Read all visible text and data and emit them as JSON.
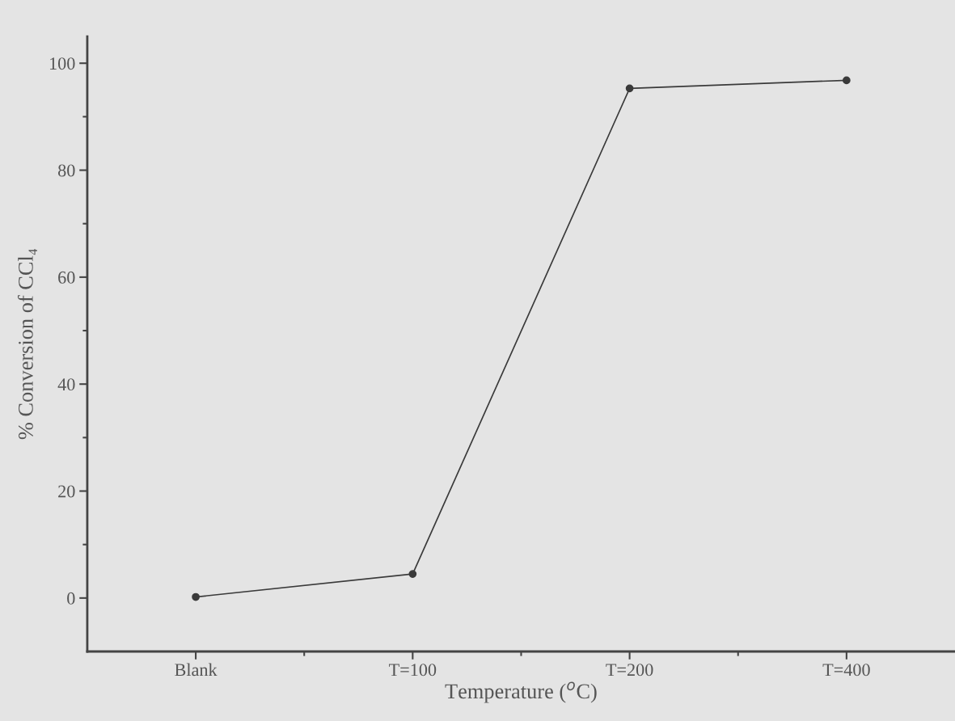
{
  "chart_data": {
    "type": "line",
    "xlabel": "Temperature ($^{o}$C)",
    "ylabel": "% Conversion of CCl₄",
    "categories": [
      "Blank",
      "T=100",
      "T=200",
      "T=400"
    ],
    "series": [
      {
        "color": "#3a3a3a",
        "values": [
          0.2,
          4.5,
          95.3,
          96.8
        ]
      }
    ],
    "ylim": [
      -10,
      105
    ],
    "yticks": [
      0,
      20,
      40,
      60,
      80,
      100
    ],
    "marker": "circle",
    "line_style": "solid",
    "grid": false,
    "legend": false
  }
}
